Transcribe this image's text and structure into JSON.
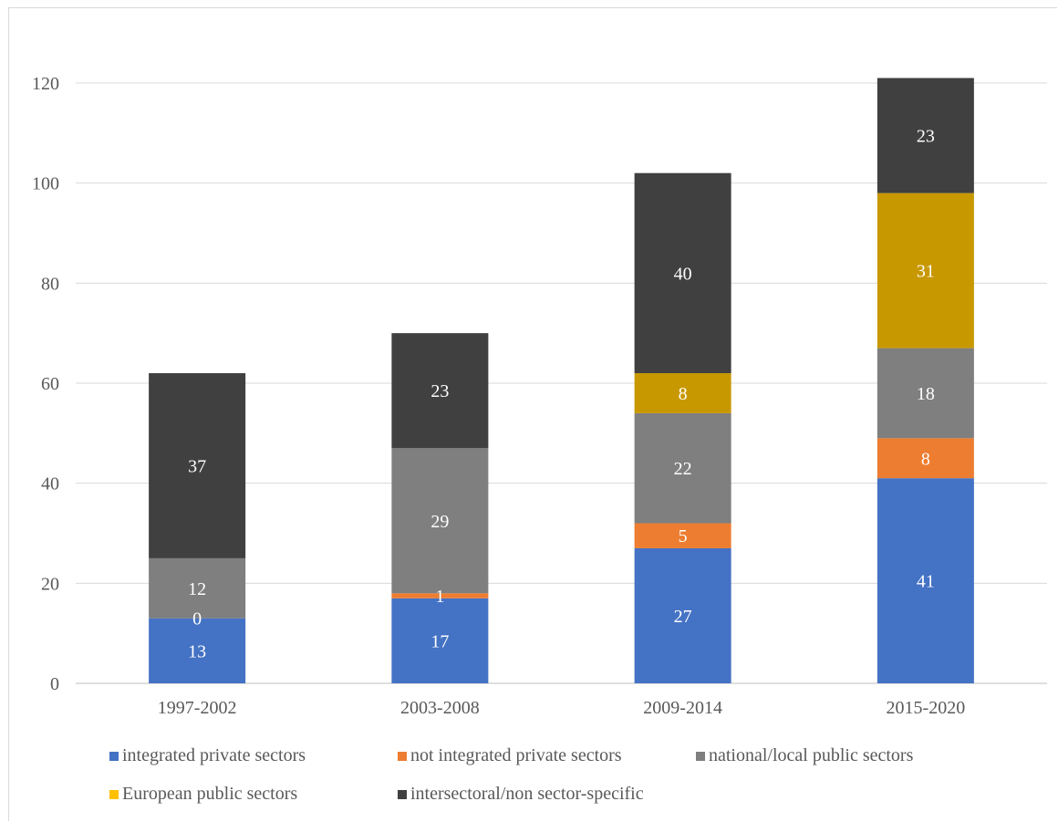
{
  "chart_data": {
    "type": "bar",
    "stacked": true,
    "categories": [
      "1997-2002",
      "2003-2008",
      "2009-2014",
      "2015-2020"
    ],
    "series": [
      {
        "name": "integrated private sectors",
        "color": "#4472c4",
        "values": [
          13,
          17,
          27,
          41
        ]
      },
      {
        "name": "not integrated private sectors",
        "color": "#ed7d31",
        "values": [
          0,
          1,
          5,
          8
        ]
      },
      {
        "name": "national/local public sectors",
        "color": "#7f7f7f",
        "values": [
          12,
          29,
          22,
          18
        ]
      },
      {
        "name": "European public sectors",
        "color": "#c89800",
        "legend_color": "#ffc000",
        "values": [
          0,
          0,
          8,
          31
        ]
      },
      {
        "name": "intersectoral/non sector-specific",
        "color": "#404040",
        "values": [
          37,
          23,
          40,
          23
        ]
      }
    ],
    "ylim": [
      0,
      120
    ],
    "yticks": [
      0,
      20,
      40,
      60,
      80,
      100,
      120
    ],
    "grid": true,
    "legend_position": "bottom",
    "data_labels": true,
    "title": "",
    "xlabel": "",
    "ylabel": ""
  }
}
